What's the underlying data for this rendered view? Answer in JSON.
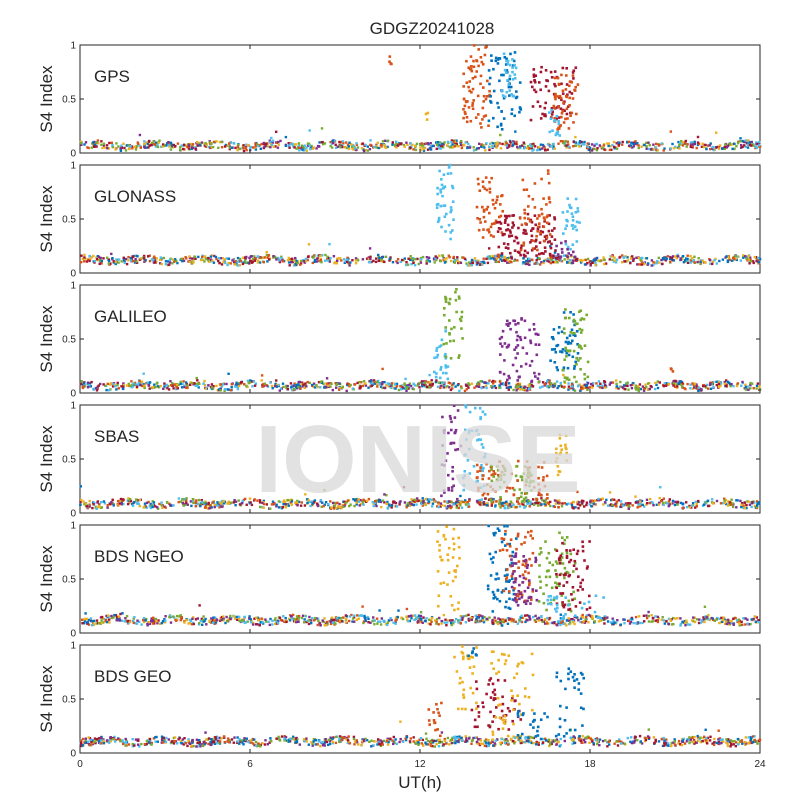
{
  "chart_data": {
    "type": "scatter",
    "title": "GDGZ20241028",
    "xlabel": "UT(h)",
    "ylabel": "S4 Index",
    "xlim": [
      0,
      24
    ],
    "ylim": [
      0,
      1
    ],
    "xticks": [
      0,
      6,
      12,
      18,
      24
    ],
    "yticks": [
      0,
      0.5,
      1
    ],
    "ytick_labels": [
      "0",
      "0.5",
      "1"
    ],
    "watermark": "IONISE",
    "colors": [
      "#0072BD",
      "#D95319",
      "#EDB120",
      "#7E2F8E",
      "#77AC30",
      "#4DBEEE",
      "#A2142F"
    ],
    "panels": [
      {
        "label": "GPS",
        "baseline": 0.07,
        "bursts": [
          {
            "t0": 13.5,
            "t1": 14.5,
            "ymin": 0.2,
            "ymax": 1.0,
            "color": "#D95319",
            "n": 70
          },
          {
            "t0": 14.4,
            "t1": 15.6,
            "ymin": 0.2,
            "ymax": 0.95,
            "color": "#0072BD",
            "n": 60
          },
          {
            "t0": 14.9,
            "t1": 15.4,
            "ymin": 0.5,
            "ymax": 0.95,
            "color": "#4DBEEE",
            "n": 25
          },
          {
            "t0": 15.9,
            "t1": 17.5,
            "ymin": 0.3,
            "ymax": 0.8,
            "color": "#A2142F",
            "n": 70
          },
          {
            "t0": 16.7,
            "t1": 17.6,
            "ymin": 0.2,
            "ymax": 0.75,
            "color": "#D95319",
            "n": 50
          },
          {
            "t0": 16.5,
            "t1": 17.0,
            "ymin": 0.15,
            "ymax": 0.4,
            "color": "#4DBEEE",
            "n": 15
          },
          {
            "t0": 10.9,
            "t1": 11.0,
            "ymin": 0.8,
            "ymax": 0.9,
            "color": "#D95319",
            "n": 4
          },
          {
            "t0": 12.2,
            "t1": 12.3,
            "ymin": 0.3,
            "ymax": 0.4,
            "color": "#EDB120",
            "n": 3
          }
        ]
      },
      {
        "label": "GLONASS",
        "baseline": 0.12,
        "bursts": [
          {
            "t0": 12.6,
            "t1": 13.2,
            "ymin": 0.3,
            "ymax": 1.0,
            "color": "#4DBEEE",
            "n": 40
          },
          {
            "t0": 14.0,
            "t1": 15.0,
            "ymin": 0.3,
            "ymax": 0.9,
            "color": "#D95319",
            "n": 50
          },
          {
            "t0": 14.7,
            "t1": 16.8,
            "ymin": 0.15,
            "ymax": 0.55,
            "color": "#A2142F",
            "n": 110
          },
          {
            "t0": 15.5,
            "t1": 16.6,
            "ymin": 0.2,
            "ymax": 0.95,
            "color": "#D95319",
            "n": 50
          },
          {
            "t0": 17.0,
            "t1": 17.7,
            "ymin": 0.2,
            "ymax": 0.7,
            "color": "#4DBEEE",
            "n": 30
          },
          {
            "t0": 16.8,
            "t1": 17.5,
            "ymin": 0.12,
            "ymax": 0.3,
            "color": "#7E2F8E",
            "n": 15
          }
        ]
      },
      {
        "label": "GALILEO",
        "baseline": 0.07,
        "bursts": [
          {
            "t0": 12.4,
            "t1": 13.0,
            "ymin": 0.1,
            "ymax": 0.6,
            "color": "#4DBEEE",
            "n": 25
          },
          {
            "t0": 12.8,
            "t1": 13.5,
            "ymin": 0.3,
            "ymax": 1.0,
            "color": "#77AC30",
            "n": 35
          },
          {
            "t0": 14.8,
            "t1": 16.2,
            "ymin": 0.1,
            "ymax": 0.7,
            "color": "#7E2F8E",
            "n": 70
          },
          {
            "t0": 16.6,
            "t1": 17.6,
            "ymin": 0.2,
            "ymax": 0.75,
            "color": "#0072BD",
            "n": 50
          },
          {
            "t0": 17.0,
            "t1": 18.0,
            "ymin": 0.1,
            "ymax": 0.8,
            "color": "#77AC30",
            "n": 50
          },
          {
            "t0": 20.8,
            "t1": 21.0,
            "ymin": 0.2,
            "ymax": 0.25,
            "color": "#D95319",
            "n": 3
          }
        ]
      },
      {
        "label": "SBAS",
        "baseline": 0.09,
        "bursts": [
          {
            "t0": 12.7,
            "t1": 13.5,
            "ymin": 0.1,
            "ymax": 1.0,
            "color": "#7E2F8E",
            "n": 40
          },
          {
            "t0": 13.5,
            "t1": 14.3,
            "ymin": 0.2,
            "ymax": 1.0,
            "color": "#4DBEEE",
            "n": 45
          },
          {
            "t0": 14.0,
            "t1": 16.5,
            "ymin": 0.1,
            "ymax": 0.5,
            "color": "#D95319",
            "n": 80
          },
          {
            "t0": 14.5,
            "t1": 16.0,
            "ymin": 0.1,
            "ymax": 0.45,
            "color": "#77AC30",
            "n": 50
          },
          {
            "t0": 16.8,
            "t1": 17.3,
            "ymin": 0.3,
            "ymax": 0.75,
            "color": "#EDB120",
            "n": 20
          }
        ]
      },
      {
        "label": "BDS NGEO",
        "baseline": 0.12,
        "bursts": [
          {
            "t0": 12.6,
            "t1": 13.4,
            "ymin": 0.2,
            "ymax": 1.0,
            "color": "#EDB120",
            "n": 40
          },
          {
            "t0": 14.4,
            "t1": 15.4,
            "ymin": 0.2,
            "ymax": 1.0,
            "color": "#0072BD",
            "n": 60
          },
          {
            "t0": 14.8,
            "t1": 16.0,
            "ymin": 0.2,
            "ymax": 0.95,
            "color": "#D95319",
            "n": 60
          },
          {
            "t0": 15.2,
            "t1": 16.2,
            "ymin": 0.1,
            "ymax": 0.75,
            "color": "#7E2F8E",
            "n": 50
          },
          {
            "t0": 16.2,
            "t1": 17.5,
            "ymin": 0.2,
            "ymax": 0.95,
            "color": "#77AC30",
            "n": 60
          },
          {
            "t0": 16.8,
            "t1": 18.0,
            "ymin": 0.2,
            "ymax": 0.85,
            "color": "#A2142F",
            "n": 60
          },
          {
            "t0": 16.5,
            "t1": 18.5,
            "ymin": 0.1,
            "ymax": 0.35,
            "color": "#4DBEEE",
            "n": 30
          }
        ]
      },
      {
        "label": "BDS GEO",
        "baseline": 0.11,
        "bursts": [
          {
            "t0": 12.3,
            "t1": 12.8,
            "ymin": 0.15,
            "ymax": 0.5,
            "color": "#D95319",
            "n": 15
          },
          {
            "t0": 13.2,
            "t1": 14.0,
            "ymin": 0.4,
            "ymax": 1.0,
            "color": "#EDB120",
            "n": 30
          },
          {
            "t0": 13.8,
            "t1": 15.6,
            "ymin": 0.2,
            "ymax": 0.7,
            "color": "#A2142F",
            "n": 50
          },
          {
            "t0": 14.5,
            "t1": 16.0,
            "ymin": 0.1,
            "ymax": 0.95,
            "color": "#EDB120",
            "n": 50
          },
          {
            "t0": 15.4,
            "t1": 16.5,
            "ymin": 0.1,
            "ymax": 0.4,
            "color": "#0072BD",
            "n": 25
          },
          {
            "t0": 16.8,
            "t1": 17.8,
            "ymin": 0.15,
            "ymax": 0.8,
            "color": "#0072BD",
            "n": 35
          },
          {
            "t0": 13.7,
            "t1": 14.0,
            "ymin": 0.9,
            "ymax": 1.0,
            "color": "#0072BD",
            "n": 6
          }
        ]
      }
    ]
  }
}
